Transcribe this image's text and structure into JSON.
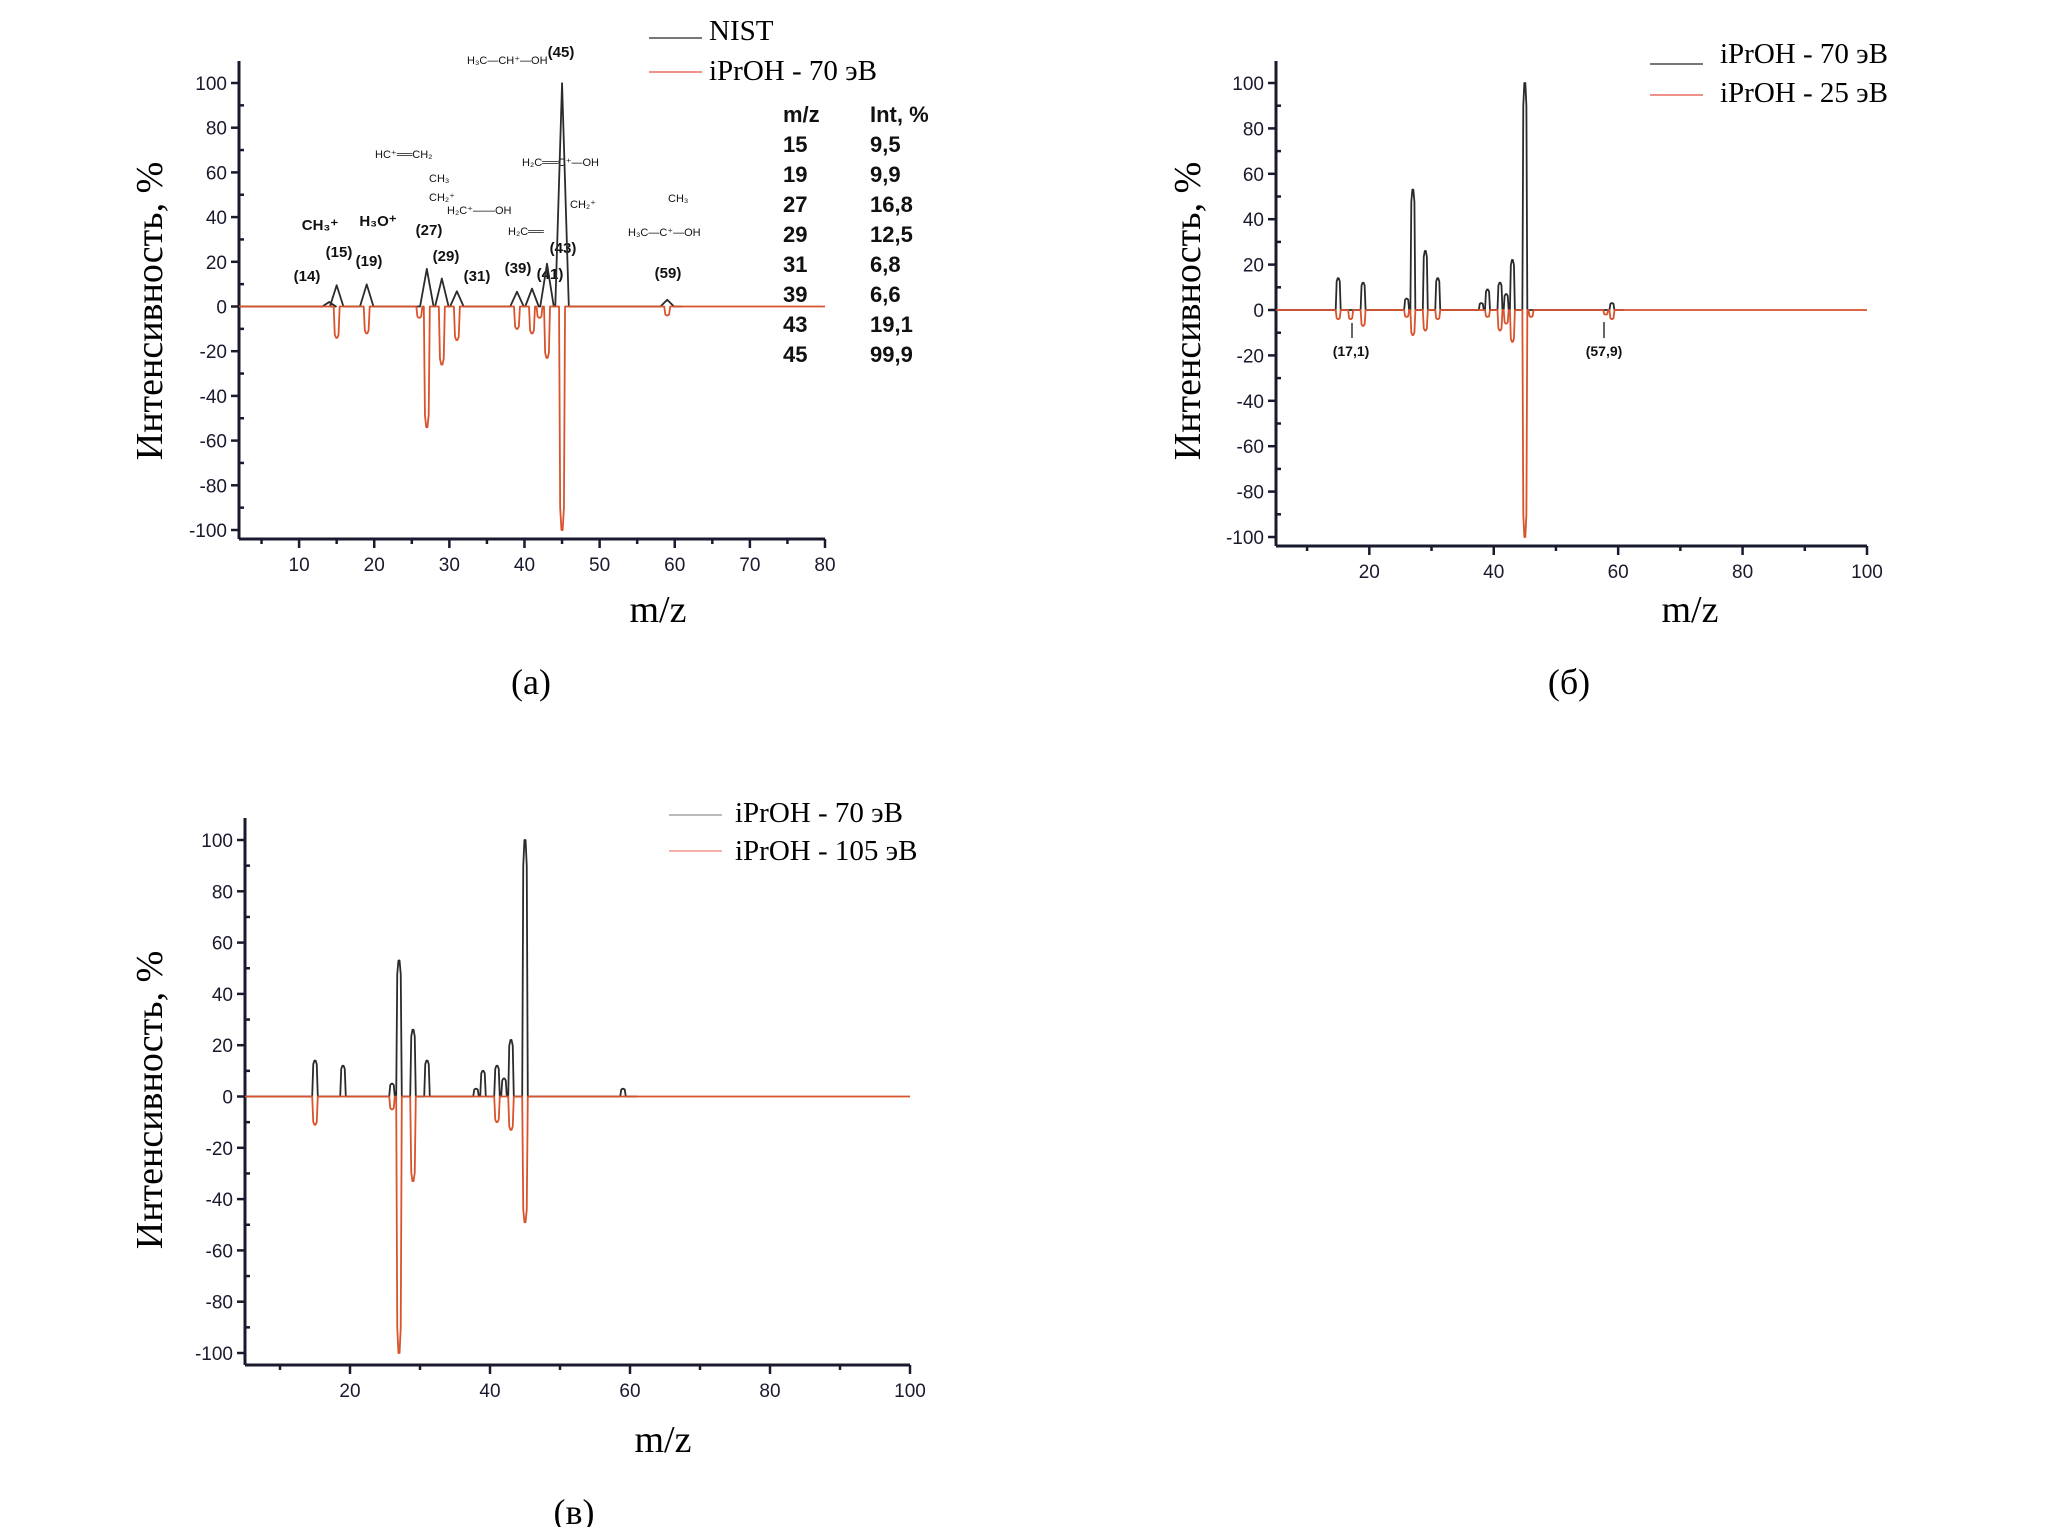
{
  "colors": {
    "series_black": "#2b2b2b",
    "series_red": "#d9532c",
    "legend_black": "#777777",
    "legend_red": "#f0908a",
    "axis": "#1a1a2e"
  },
  "chart_data": [
    {
      "id": "a",
      "type": "line",
      "caption": "(a)",
      "xlabel": "m/z",
      "ylabel": "Интенсивность, %",
      "xlim": [
        2,
        80
      ],
      "ylim": [
        -100,
        100
      ],
      "xticks": [
        10,
        20,
        30,
        40,
        50,
        60,
        70,
        80
      ],
      "yticks": [
        100,
        80,
        60,
        40,
        20,
        0,
        -20,
        -40,
        -60,
        -80,
        -100
      ],
      "legend": "top-right",
      "series": [
        {
          "name": "NIST",
          "color": "black",
          "style": "triangle",
          "x": [
            14,
            15,
            19,
            27,
            29,
            31,
            39,
            41,
            43,
            45,
            59
          ],
          "y": [
            2,
            9.5,
            9.9,
            16.8,
            12.5,
            6.8,
            6.6,
            8,
            19.1,
            99.9,
            3
          ]
        },
        {
          "name": "iPrOH - 70 эВ",
          "color": "red",
          "style": "peak",
          "x": [
            15,
            19,
            26,
            27,
            29,
            31,
            39,
            41,
            42,
            43,
            45,
            59
          ],
          "y": [
            -14,
            -12,
            -5,
            -54,
            -26,
            -15,
            -10,
            -12,
            -5,
            -23,
            -100,
            -4
          ]
        }
      ],
      "table": {
        "headers": [
          "m/z",
          "Int, %"
        ],
        "rows": [
          [
            "15",
            "9,5"
          ],
          [
            "19",
            "9,9"
          ],
          [
            "27",
            "16,8"
          ],
          [
            "29",
            "12,5"
          ],
          [
            "31",
            "6,8"
          ],
          [
            "39",
            "6,6"
          ],
          [
            "43",
            "19,1"
          ],
          [
            "45",
            "99,9"
          ]
        ]
      },
      "peak_labels": [
        "(14)",
        "(15)",
        "(19)",
        "(27)",
        "(29)",
        "(31)",
        "(39)",
        "(41)",
        "(43)",
        "(45)",
        "(59)"
      ],
      "ion_labels": {
        "ch3": "CH₃⁺",
        "h3o": "H₃O⁺",
        "m45": "H₃C—CH⁺—OH",
        "m27": "HC⁺══CH₂",
        "m29a": "CH₃",
        "m29b": "CH₂⁺",
        "m31": "H₂C⁺——OH",
        "m43a": "H₂C══C⁺—OH",
        "m41a": "H₂C══",
        "m41b": "CH₂⁺",
        "m59a": "CH₃",
        "m59b": "H₃C—C⁺—OH"
      }
    },
    {
      "id": "b",
      "type": "line",
      "caption": "(б)",
      "xlabel": "m/z",
      "ylabel": "Интенсивность, %",
      "xlim": [
        5,
        100
      ],
      "ylim": [
        -100,
        100
      ],
      "xticks": [
        20,
        40,
        60,
        80,
        100
      ],
      "yticks": [
        100,
        80,
        60,
        40,
        20,
        0,
        -20,
        -40,
        -60,
        -80,
        -100
      ],
      "legend": "top-right",
      "series": [
        {
          "name": "iPrOH - 70 эВ",
          "color": "black",
          "style": "peak",
          "x": [
            15,
            19,
            26,
            27,
            29,
            31,
            38,
            39,
            41,
            42,
            43,
            45,
            59
          ],
          "y": [
            14,
            12,
            5,
            53,
            26,
            14,
            3,
            9,
            12,
            7,
            22,
            100,
            3
          ]
        },
        {
          "name": "iPrOH - 25 эВ",
          "color": "red",
          "style": "peak",
          "x": [
            15,
            17,
            19,
            26,
            27,
            29,
            31,
            39,
            41,
            42,
            43,
            45,
            46,
            58,
            59
          ],
          "y": [
            -4,
            -4,
            -7,
            -3,
            -11,
            -9,
            -4,
            -3,
            -9,
            -6,
            -14,
            -100,
            -3,
            -2,
            -4
          ]
        }
      ],
      "annotations": [
        "(17,1)",
        "(57,9)"
      ]
    },
    {
      "id": "c",
      "type": "line",
      "caption": "(в)",
      "xlabel": "m/z",
      "ylabel": "Интенсивность, %",
      "xlim": [
        5,
        100
      ],
      "ylim": [
        -100,
        100
      ],
      "xticks": [
        20,
        40,
        60,
        80,
        100
      ],
      "yticks": [
        100,
        80,
        60,
        40,
        20,
        0,
        -20,
        -40,
        -60,
        -80,
        -100
      ],
      "legend": "top-right",
      "series": [
        {
          "name": "iPrOH - 70 эВ",
          "color": "black",
          "style": "peak",
          "x": [
            15,
            19,
            26,
            27,
            29,
            31,
            38,
            39,
            41,
            42,
            43,
            45,
            59
          ],
          "y": [
            14,
            12,
            5,
            53,
            26,
            14,
            3,
            10,
            12,
            7,
            22,
            100,
            3
          ]
        },
        {
          "name": "iPrOH - 105 эВ",
          "color": "red",
          "style": "peak",
          "x": [
            15,
            26,
            27,
            29,
            41,
            43,
            45
          ],
          "y": [
            -11,
            -5,
            -100,
            -33,
            -10,
            -13,
            -49
          ]
        }
      ]
    }
  ]
}
